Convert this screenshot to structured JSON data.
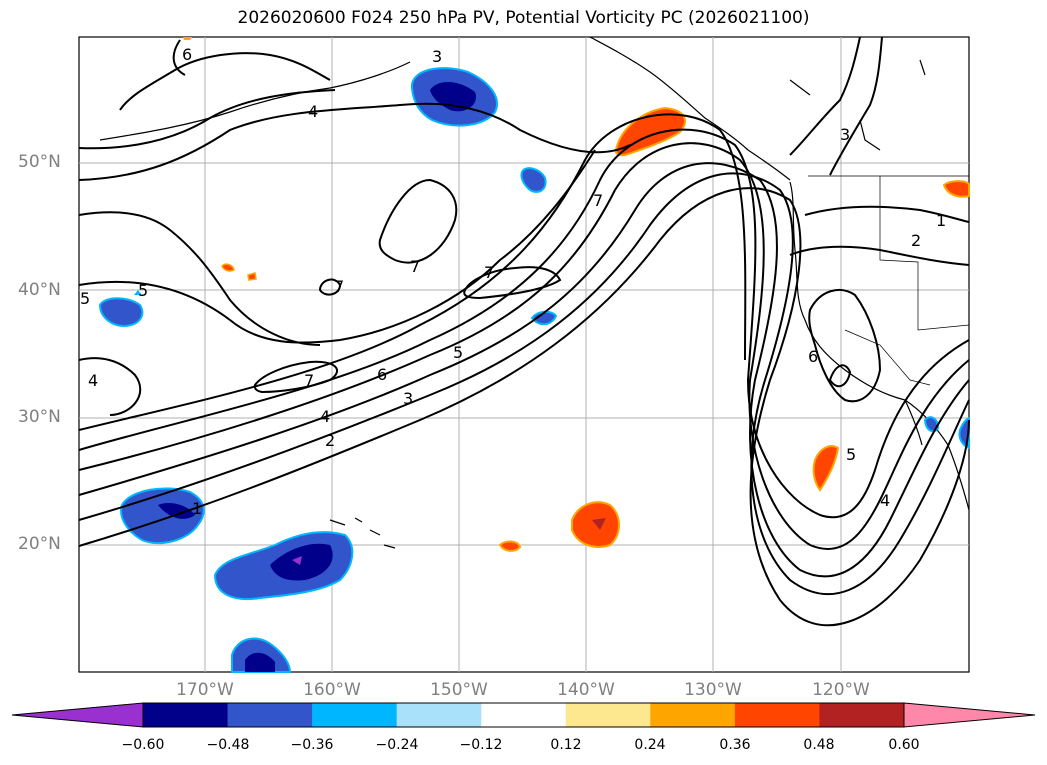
{
  "title": "2026020600 F024 250 hPa PV, Potential Vorticity PC (2026021100)",
  "map": {
    "lat_labels": [
      "50°N",
      "40°N",
      "30°N",
      "20°N"
    ],
    "lon_labels": [
      "170°W",
      "160°W",
      "150°W",
      "140°W",
      "130°W",
      "120°W"
    ]
  },
  "contour_labels": [
    "6",
    "4",
    "3",
    "3",
    "1",
    "2",
    "7",
    "7",
    "7",
    "7",
    "6",
    "5",
    "4",
    "3",
    "2",
    "7",
    "6",
    "5",
    "4",
    "4",
    "5",
    "1",
    "5"
  ],
  "colorbar": {
    "ticks": [
      "−0.60",
      "−0.48",
      "−0.36",
      "−0.24",
      "−0.12",
      "0.12",
      "0.24",
      "0.36",
      "0.48",
      "0.60"
    ],
    "colors": [
      "#9b30d0",
      "#00008b",
      "#3355cc",
      "#00b7ff",
      "#a9e0fa",
      "#ffffff",
      "#fde890",
      "#ffa500",
      "#ff4500",
      "#b22222",
      "#ff88aa"
    ]
  }
}
